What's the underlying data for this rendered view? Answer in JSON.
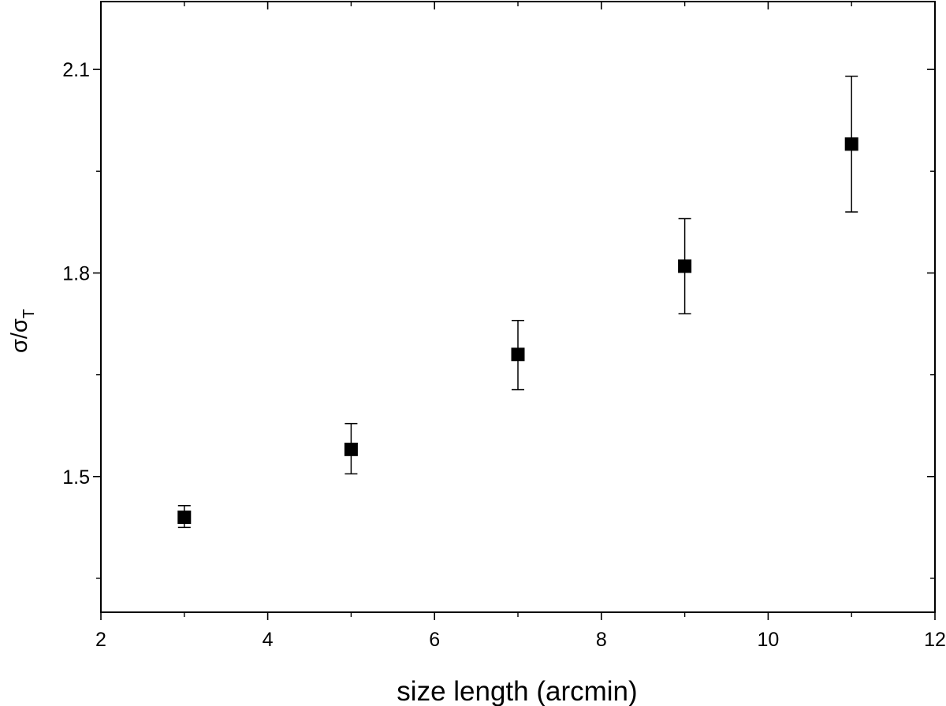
{
  "chart_data": {
    "type": "scatter",
    "title": "",
    "xlabel": "size length (arcmin)",
    "ylabel": {
      "main": "σ/σ",
      "subscript": "T"
    },
    "xlim": [
      2,
      12
    ],
    "ylim": [
      1.3,
      2.2
    ],
    "x_ticks": [
      2,
      4,
      6,
      8,
      10,
      12
    ],
    "x_tick_labels": [
      "2",
      "4",
      "6",
      "8",
      "10",
      "12"
    ],
    "y_major_ticks": [
      1.5,
      1.8,
      2.1
    ],
    "y_tick_labels": [
      "1.5",
      "1.8",
      "2.1"
    ],
    "y_minor_ticks": [
      1.35,
      1.65,
      1.95
    ],
    "grid": false,
    "legend": "none",
    "marker": "filled-square",
    "color": "#000000",
    "series": [
      {
        "x": [
          3,
          5,
          7,
          9,
          11
        ],
        "y": [
          1.44,
          1.54,
          1.68,
          1.81,
          1.99
        ],
        "err_low": [
          1.425,
          1.504,
          1.628,
          1.74,
          1.89
        ],
        "err_high": [
          1.457,
          1.578,
          1.73,
          1.88,
          2.09
        ]
      }
    ]
  }
}
